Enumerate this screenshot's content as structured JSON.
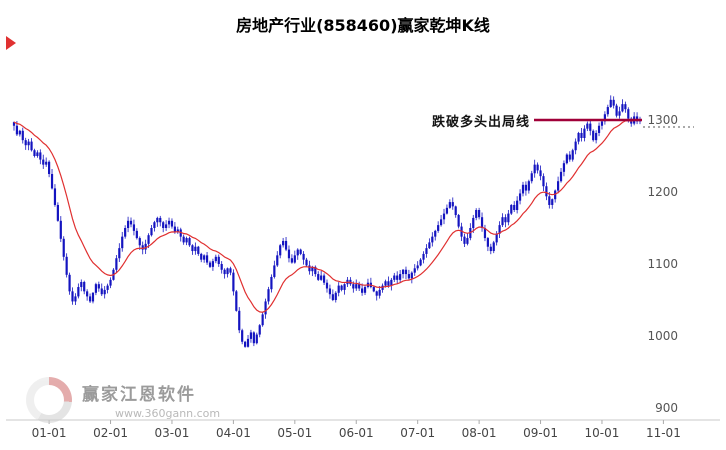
{
  "title": "房地产行业(858460)赢家乾坤K线",
  "watermark": {
    "brand": "赢家江恩软件",
    "url": "www.360gann.com"
  },
  "chart_data": {
    "type": "candlestick",
    "name": "房地产行业",
    "symbol": "858460",
    "ylim": [
      900,
      1350
    ],
    "y_ticks": [
      1300,
      1200,
      1100,
      1000,
      900
    ],
    "x_ticks": [
      {
        "label": "01-01",
        "i": 12
      },
      {
        "label": "02-01",
        "i": 33
      },
      {
        "label": "03-01",
        "i": 54
      },
      {
        "label": "04-01",
        "i": 75
      },
      {
        "label": "05-01",
        "i": 96
      },
      {
        "label": "06-01",
        "i": 117
      },
      {
        "label": "07-01",
        "i": 138
      },
      {
        "label": "08-01",
        "i": 159
      },
      {
        "label": "09-01",
        "i": 180
      },
      {
        "label": "10-01",
        "i": 201
      },
      {
        "label": "11-01",
        "i": 222
      }
    ],
    "closes": [
      1292,
      1280,
      1285,
      1272,
      1265,
      1270,
      1258,
      1250,
      1255,
      1245,
      1238,
      1242,
      1225,
      1205,
      1182,
      1160,
      1135,
      1110,
      1085,
      1062,
      1048,
      1055,
      1068,
      1075,
      1062,
      1055,
      1048,
      1060,
      1072,
      1066,
      1058,
      1064,
      1070,
      1078,
      1092,
      1108,
      1122,
      1138,
      1150,
      1160,
      1155,
      1146,
      1136,
      1126,
      1120,
      1128,
      1140,
      1150,
      1158,
      1164,
      1158,
      1150,
      1155,
      1160,
      1152,
      1144,
      1148,
      1138,
      1130,
      1136,
      1126,
      1118,
      1124,
      1114,
      1106,
      1112,
      1102,
      1096,
      1104,
      1110,
      1100,
      1092,
      1086,
      1094,
      1088,
      1062,
      1035,
      1008,
      992,
      985,
      996,
      1005,
      990,
      1002,
      1015,
      1030,
      1048,
      1065,
      1082,
      1098,
      1112,
      1126,
      1132,
      1120,
      1108,
      1102,
      1112,
      1120,
      1114,
      1106,
      1098,
      1090,
      1096,
      1086,
      1078,
      1084,
      1074,
      1066,
      1058,
      1050,
      1060,
      1070,
      1064,
      1072,
      1078,
      1072,
      1066,
      1072,
      1066,
      1060,
      1068,
      1074,
      1068,
      1062,
      1056,
      1064,
      1070,
      1076,
      1070,
      1078,
      1084,
      1078,
      1086,
      1092,
      1086,
      1080,
      1088,
      1094,
      1098,
      1106,
      1114,
      1122,
      1130,
      1138,
      1146,
      1154,
      1162,
      1170,
      1178,
      1186,
      1180,
      1168,
      1152,
      1138,
      1128,
      1136,
      1150,
      1164,
      1175,
      1165,
      1150,
      1136,
      1124,
      1118,
      1130,
      1142,
      1154,
      1165,
      1158,
      1170,
      1182,
      1175,
      1188,
      1198,
      1210,
      1202,
      1215,
      1226,
      1238,
      1230,
      1222,
      1208,
      1194,
      1182,
      1190,
      1202,
      1215,
      1228,
      1240,
      1252,
      1245,
      1258,
      1270,
      1282,
      1275,
      1288,
      1295,
      1285,
      1272,
      1282,
      1292,
      1298,
      1308,
      1318,
      1328,
      1320,
      1306,
      1312,
      1322,
      1315,
      1302,
      1295,
      1305,
      1298,
      1300
    ],
    "ma_line": {
      "name": "均线",
      "seed": 1298,
      "alpha": 0.12
    },
    "exit_line": {
      "label": "跌破多头出局线",
      "price": 1300
    },
    "last_price": 1300,
    "colors": {
      "candle": "#1414c0",
      "ma": "#e03030",
      "exit": "#a00038",
      "axis_text": "#444444"
    }
  }
}
